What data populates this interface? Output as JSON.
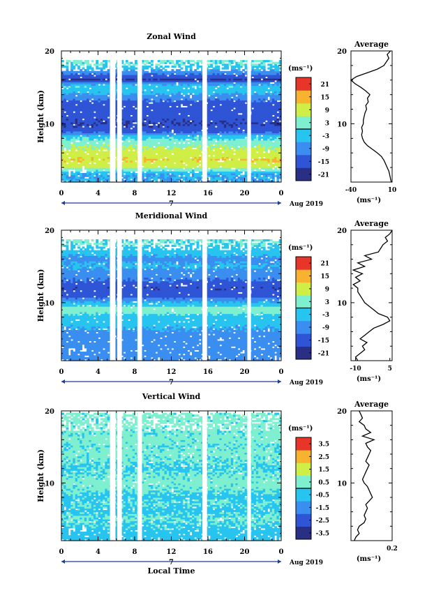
{
  "chart_data": [
    {
      "type": "heatmap",
      "title": "Zonal Wind",
      "ylabel": "Height (km)",
      "xticks": [
        "0",
        "4",
        "8",
        "12",
        "16",
        "20",
        "0"
      ],
      "yticks": [
        "20",
        "10"
      ],
      "day_label": "7",
      "date_label": "Aug 2019",
      "xlim": [
        0,
        24
      ],
      "ylim": [
        2,
        20
      ],
      "colorbar": {
        "unit": "(ms⁻¹)",
        "ticks": [
          "21",
          "15",
          "9",
          "3",
          "-3",
          "-9",
          "-15",
          "-21"
        ],
        "range": [
          -24,
          24
        ]
      },
      "fill_gaps": [
        [
          5.3,
          5.9
        ],
        [
          6.1,
          6.6
        ],
        [
          8.3,
          8.8
        ],
        [
          15.4,
          15.9
        ],
        [
          20.3,
          20.7
        ]
      ],
      "field": {
        "heights": [
          3,
          4,
          5,
          6,
          7,
          8,
          9,
          10,
          11,
          12,
          13,
          14,
          15,
          16,
          17,
          18
        ],
        "values": [
          -6,
          8,
          12,
          8,
          5,
          -1,
          -16,
          -18,
          -16,
          -15,
          -13,
          -6,
          -1,
          -19,
          -9,
          0
        ]
      },
      "average": {
        "title": "Average",
        "xlabel": "(ms⁻¹)",
        "xticks": [
          "-40",
          "10"
        ],
        "xlim": [
          -40,
          10
        ],
        "yticks": [
          "20",
          "10"
        ],
        "heights": [
          2.0,
          2.5,
          3.0,
          3.5,
          4.0,
          4.5,
          5.0,
          5.5,
          6.0,
          6.5,
          7.0,
          7.5,
          8.0,
          8.5,
          9.0,
          9.5,
          10.0,
          10.5,
          11.0,
          11.5,
          12.0,
          12.5,
          13.0,
          13.5,
          14.0,
          14.5,
          15.0,
          15.5,
          16.0,
          16.5,
          17.0,
          17.5,
          18.0,
          18.5,
          19.0,
          19.5,
          20.0
        ],
        "values": [
          9,
          8,
          7,
          6,
          4,
          2,
          0,
          -3,
          -8,
          -14,
          -20,
          -24,
          -26,
          -27,
          -26,
          -27,
          -25,
          -25,
          -24,
          -23,
          -21,
          -22,
          -19,
          -20,
          -17,
          -22,
          -28,
          -35,
          -40,
          -33,
          -20,
          -8,
          0,
          3,
          6,
          4,
          8
        ]
      }
    },
    {
      "type": "heatmap",
      "title": "Meridional Wind",
      "ylabel": "Height (km)",
      "xticks": [
        "0",
        "4",
        "8",
        "12",
        "16",
        "20",
        "0"
      ],
      "yticks": [
        "20",
        "10"
      ],
      "day_label": "7",
      "date_label": "Aug 2019",
      "xlim": [
        0,
        24
      ],
      "ylim": [
        2,
        20
      ],
      "colorbar": {
        "unit": "(ms⁻¹)",
        "ticks": [
          "21",
          "15",
          "9",
          "3",
          "-3",
          "-9",
          "-15",
          "-21"
        ],
        "range": [
          -24,
          24
        ]
      },
      "fill_gaps": [
        [
          5.3,
          5.9
        ],
        [
          6.1,
          6.6
        ],
        [
          8.3,
          8.8
        ],
        [
          15.4,
          15.9
        ],
        [
          20.3,
          20.7
        ]
      ],
      "field": {
        "heights": [
          3,
          4,
          5,
          6,
          7,
          8,
          9,
          10,
          11,
          12,
          13,
          14,
          15,
          16,
          17,
          18
        ],
        "values": [
          -10,
          -8,
          -9,
          -7,
          -4,
          -2,
          4,
          -6,
          -16,
          -17,
          -12,
          -9,
          -5,
          -8,
          -3,
          0
        ]
      },
      "average": {
        "title": "Average",
        "xlabel": "(ms⁻¹)",
        "xticks": [
          "-10",
          "5"
        ],
        "xlim": [
          -12,
          6
        ],
        "yticks": [
          "20",
          "10"
        ],
        "heights": [
          2.0,
          2.5,
          3.0,
          3.5,
          4.0,
          4.5,
          5.0,
          5.5,
          6.0,
          6.5,
          7.0,
          7.5,
          8.0,
          8.5,
          9.0,
          9.5,
          10.0,
          10.5,
          11.0,
          11.5,
          12.0,
          12.5,
          13.0,
          13.5,
          14.0,
          14.5,
          15.0,
          15.5,
          16.0,
          16.5,
          17.0,
          17.5,
          18.0,
          18.5,
          19.0,
          19.5,
          20.0
        ],
        "values": [
          -9,
          -10,
          -8,
          -6,
          -7,
          -5,
          -8,
          -6,
          -4,
          -2,
          2,
          5,
          4,
          0,
          -2,
          -4,
          -6,
          -7,
          -8,
          -9,
          -9,
          -11,
          -8,
          -10,
          -7,
          -11,
          -6,
          -9,
          -3,
          -6,
          0,
          1,
          2,
          4,
          3,
          5,
          6
        ]
      }
    },
    {
      "type": "heatmap",
      "title": "Vertical Wind",
      "ylabel": "Height (km)",
      "xlabel": "Local Time",
      "xticks": [
        "0",
        "4",
        "8",
        "12",
        "16",
        "20",
        "0"
      ],
      "yticks": [
        "20",
        "10"
      ],
      "day_label": "7",
      "date_label": "Aug 2019",
      "xlim": [
        0,
        24
      ],
      "ylim": [
        2,
        20
      ],
      "colorbar": {
        "unit": "(ms⁻¹)",
        "ticks": [
          "3.5",
          "2.5",
          "1.5",
          "0.5",
          "-0.5",
          "-1.5",
          "-2.5",
          "-3.5"
        ],
        "range": [
          -4,
          4
        ]
      },
      "fill_gaps": [
        [
          5.3,
          5.9
        ],
        [
          6.1,
          6.6
        ],
        [
          8.3,
          8.8
        ],
        [
          15.4,
          15.9
        ],
        [
          20.3,
          20.7
        ]
      ],
      "field": {
        "heights": [
          3,
          4,
          5,
          6,
          7,
          8,
          9,
          10,
          11,
          12,
          13,
          14,
          15,
          16,
          17,
          18,
          19
        ],
        "values": [
          -0.3,
          -0.1,
          0.1,
          -0.2,
          0.0,
          -0.2,
          0.1,
          0.2,
          0.1,
          -0.1,
          0.1,
          0.2,
          0.1,
          0.2,
          0.1,
          0.2,
          0.2
        ]
      },
      "average": {
        "title": "Average",
        "xlabel": "(ms⁻¹)",
        "xticks": [
          "0.2"
        ],
        "xlim": [
          -0.05,
          0.2
        ],
        "yticks": [
          "20",
          "10"
        ],
        "heights": [
          2.0,
          2.5,
          3.0,
          3.5,
          4.0,
          4.5,
          5.0,
          5.5,
          6.0,
          6.5,
          7.0,
          7.5,
          8.0,
          8.5,
          9.0,
          9.5,
          10.0,
          10.5,
          11.0,
          11.5,
          12.0,
          12.5,
          13.0,
          13.5,
          14.0,
          14.5,
          15.0,
          15.5,
          16.0,
          16.5,
          17.0,
          17.5,
          18.0,
          18.5,
          19.0,
          19.5,
          20.0
        ],
        "values": [
          -0.03,
          -0.02,
          0.0,
          -0.01,
          0.0,
          0.03,
          0.04,
          0.03,
          0.04,
          0.05,
          0.04,
          0.06,
          0.08,
          0.07,
          0.06,
          0.05,
          0.03,
          0.02,
          0.03,
          0.04,
          0.05,
          0.06,
          0.04,
          0.05,
          0.06,
          0.07,
          0.05,
          0.04,
          0.09,
          0.02,
          0.07,
          0.04,
          0.03,
          0.0,
          0.02,
          0.01,
          0.0
        ]
      }
    }
  ]
}
